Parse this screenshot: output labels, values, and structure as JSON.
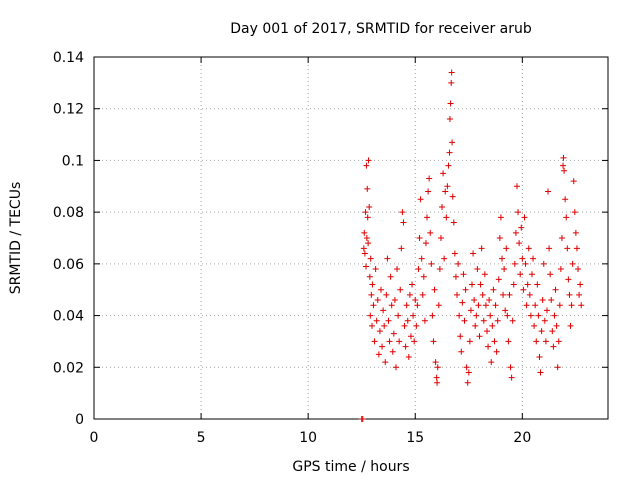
{
  "chart_data": {
    "type": "scatter",
    "title": "Day 001 of 2017, SRMTID for receiver arub",
    "xlabel": "GPS time / hours",
    "ylabel": "SRMTID / TECUs",
    "xlim": [
      0,
      24
    ],
    "ylim": [
      0,
      0.14
    ],
    "x_ticks": [
      0,
      5,
      10,
      15,
      20
    ],
    "x_tick_labels": [
      "0",
      "5",
      "10",
      "15",
      "20"
    ],
    "y_ticks": [
      0,
      0.02,
      0.04,
      0.06,
      0.08,
      0.1,
      0.12,
      0.14
    ],
    "y_tick_labels": [
      "0",
      "0.02",
      "0.04",
      "0.06",
      "0.08",
      "0.1",
      "0.12",
      "0.14"
    ],
    "grid": true,
    "marker": "+",
    "color": "#e00000",
    "series": [
      {
        "name": "SRMTID",
        "points": [
          [
            12.5,
            0.0
          ],
          [
            12.55,
            0.0
          ],
          [
            12.6,
            0.066
          ],
          [
            12.62,
            0.072
          ],
          [
            12.65,
            0.064
          ],
          [
            12.68,
            0.08
          ],
          [
            12.7,
            0.059
          ],
          [
            12.72,
            0.098
          ],
          [
            12.74,
            0.07
          ],
          [
            12.76,
            0.089
          ],
          [
            12.78,
            0.078
          ],
          [
            12.8,
            0.068
          ],
          [
            12.82,
            0.1
          ],
          [
            12.85,
            0.082
          ],
          [
            12.88,
            0.055
          ],
          [
            12.9,
            0.04
          ],
          [
            12.92,
            0.062
          ],
          [
            12.95,
            0.048
          ],
          [
            12.98,
            0.036
          ],
          [
            13.0,
            0.052
          ],
          [
            13.05,
            0.044
          ],
          [
            13.1,
            0.03
          ],
          [
            13.15,
            0.058
          ],
          [
            13.2,
            0.038
          ],
          [
            13.25,
            0.046
          ],
          [
            13.3,
            0.025
          ],
          [
            13.35,
            0.034
          ],
          [
            13.4,
            0.05
          ],
          [
            13.45,
            0.028
          ],
          [
            13.5,
            0.042
          ],
          [
            13.55,
            0.036
          ],
          [
            13.6,
            0.022
          ],
          [
            13.65,
            0.048
          ],
          [
            13.7,
            0.062
          ],
          [
            13.75,
            0.038
          ],
          [
            13.8,
            0.03
          ],
          [
            13.85,
            0.055
          ],
          [
            13.9,
            0.044
          ],
          [
            13.95,
            0.026
          ],
          [
            14.0,
            0.033
          ],
          [
            14.05,
            0.046
          ],
          [
            14.1,
            0.02
          ],
          [
            14.15,
            0.058
          ],
          [
            14.2,
            0.04
          ],
          [
            14.25,
            0.03
          ],
          [
            14.3,
            0.05
          ],
          [
            14.35,
            0.066
          ],
          [
            14.4,
            0.08
          ],
          [
            14.45,
            0.076
          ],
          [
            14.5,
            0.036
          ],
          [
            14.55,
            0.028
          ],
          [
            14.6,
            0.044
          ],
          [
            14.65,
            0.038
          ],
          [
            14.7,
            0.024
          ],
          [
            14.75,
            0.048
          ],
          [
            14.8,
            0.032
          ],
          [
            14.85,
            0.052
          ],
          [
            14.9,
            0.04
          ],
          [
            14.95,
            0.03
          ],
          [
            15.0,
            0.046
          ],
          [
            15.05,
            0.036
          ],
          [
            15.1,
            0.044
          ],
          [
            15.15,
            0.058
          ],
          [
            15.2,
            0.07
          ],
          [
            15.25,
            0.085
          ],
          [
            15.3,
            0.062
          ],
          [
            15.35,
            0.048
          ],
          [
            15.4,
            0.055
          ],
          [
            15.45,
            0.038
          ],
          [
            15.5,
            0.068
          ],
          [
            15.55,
            0.078
          ],
          [
            15.6,
            0.088
          ],
          [
            15.65,
            0.093
          ],
          [
            15.7,
            0.072
          ],
          [
            15.75,
            0.06
          ],
          [
            15.8,
            0.04
          ],
          [
            15.85,
            0.03
          ],
          [
            15.9,
            0.05
          ],
          [
            15.95,
            0.022
          ],
          [
            16.0,
            0.016
          ],
          [
            16.02,
            0.014
          ],
          [
            16.05,
            0.02
          ],
          [
            16.1,
            0.044
          ],
          [
            16.15,
            0.058
          ],
          [
            16.2,
            0.07
          ],
          [
            16.25,
            0.082
          ],
          [
            16.3,
            0.095
          ],
          [
            16.35,
            0.062
          ],
          [
            16.4,
            0.088
          ],
          [
            16.45,
            0.078
          ],
          [
            16.5,
            0.09
          ],
          [
            16.55,
            0.098
          ],
          [
            16.6,
            0.103
          ],
          [
            16.62,
            0.116
          ],
          [
            16.65,
            0.122
          ],
          [
            16.68,
            0.13
          ],
          [
            16.7,
            0.134
          ],
          [
            16.72,
            0.107
          ],
          [
            16.75,
            0.086
          ],
          [
            16.8,
            0.076
          ],
          [
            16.85,
            0.064
          ],
          [
            16.9,
            0.055
          ],
          [
            16.95,
            0.048
          ],
          [
            17.0,
            0.06
          ],
          [
            17.05,
            0.04
          ],
          [
            17.1,
            0.032
          ],
          [
            17.15,
            0.026
          ],
          [
            17.2,
            0.045
          ],
          [
            17.25,
            0.056
          ],
          [
            17.3,
            0.038
          ],
          [
            17.35,
            0.05
          ],
          [
            17.4,
            0.02
          ],
          [
            17.45,
            0.014
          ],
          [
            17.5,
            0.018
          ],
          [
            17.55,
            0.03
          ],
          [
            17.6,
            0.042
          ],
          [
            17.65,
            0.052
          ],
          [
            17.7,
            0.064
          ],
          [
            17.75,
            0.046
          ],
          [
            17.8,
            0.036
          ],
          [
            17.85,
            0.04
          ],
          [
            17.9,
            0.058
          ],
          [
            17.95,
            0.044
          ],
          [
            18.0,
            0.032
          ],
          [
            18.05,
            0.052
          ],
          [
            18.1,
            0.066
          ],
          [
            18.15,
            0.048
          ],
          [
            18.2,
            0.038
          ],
          [
            18.25,
            0.056
          ],
          [
            18.3,
            0.044
          ],
          [
            18.35,
            0.034
          ],
          [
            18.4,
            0.028
          ],
          [
            18.45,
            0.046
          ],
          [
            18.5,
            0.04
          ],
          [
            18.55,
            0.022
          ],
          [
            18.6,
            0.036
          ],
          [
            18.65,
            0.05
          ],
          [
            18.7,
            0.03
          ],
          [
            18.75,
            0.044
          ],
          [
            18.8,
            0.026
          ],
          [
            18.85,
            0.038
          ],
          [
            18.9,
            0.054
          ],
          [
            18.95,
            0.07
          ],
          [
            19.0,
            0.078
          ],
          [
            19.05,
            0.062
          ],
          [
            19.1,
            0.048
          ],
          [
            19.15,
            0.058
          ],
          [
            19.2,
            0.042
          ],
          [
            19.25,
            0.066
          ],
          [
            19.3,
            0.04
          ],
          [
            19.35,
            0.03
          ],
          [
            19.4,
            0.048
          ],
          [
            19.45,
            0.02
          ],
          [
            19.5,
            0.016
          ],
          [
            19.55,
            0.038
          ],
          [
            19.6,
            0.052
          ],
          [
            19.65,
            0.06
          ],
          [
            19.7,
            0.072
          ],
          [
            19.75,
            0.09
          ],
          [
            19.8,
            0.08
          ],
          [
            19.85,
            0.068
          ],
          [
            19.9,
            0.056
          ],
          [
            19.95,
            0.074
          ],
          [
            20.0,
            0.062
          ],
          [
            20.05,
            0.05
          ],
          [
            20.1,
            0.078
          ],
          [
            20.15,
            0.06
          ],
          [
            20.2,
            0.044
          ],
          [
            20.25,
            0.052
          ],
          [
            20.3,
            0.066
          ],
          [
            20.35,
            0.048
          ],
          [
            20.4,
            0.04
          ],
          [
            20.45,
            0.056
          ],
          [
            20.5,
            0.062
          ],
          [
            20.55,
            0.036
          ],
          [
            20.6,
            0.044
          ],
          [
            20.65,
            0.03
          ],
          [
            20.7,
            0.052
          ],
          [
            20.75,
            0.04
          ],
          [
            20.8,
            0.024
          ],
          [
            20.85,
            0.018
          ],
          [
            20.9,
            0.034
          ],
          [
            20.95,
            0.046
          ],
          [
            21.0,
            0.06
          ],
          [
            21.05,
            0.038
          ],
          [
            21.1,
            0.03
          ],
          [
            21.15,
            0.042
          ],
          [
            21.2,
            0.088
          ],
          [
            21.25,
            0.066
          ],
          [
            21.3,
            0.056
          ],
          [
            21.35,
            0.046
          ],
          [
            21.4,
            0.034
          ],
          [
            21.45,
            0.028
          ],
          [
            21.5,
            0.04
          ],
          [
            21.55,
            0.05
          ],
          [
            21.6,
            0.036
          ],
          [
            21.65,
            0.02
          ],
          [
            21.7,
            0.03
          ],
          [
            21.75,
            0.044
          ],
          [
            21.8,
            0.058
          ],
          [
            21.85,
            0.07
          ],
          [
            21.9,
            0.098
          ],
          [
            21.92,
            0.101
          ],
          [
            21.95,
            0.096
          ],
          [
            22.0,
            0.085
          ],
          [
            22.05,
            0.078
          ],
          [
            22.1,
            0.066
          ],
          [
            22.15,
            0.054
          ],
          [
            22.2,
            0.048
          ],
          [
            22.25,
            0.036
          ],
          [
            22.3,
            0.044
          ],
          [
            22.35,
            0.06
          ],
          [
            22.4,
            0.092
          ],
          [
            22.45,
            0.08
          ],
          [
            22.5,
            0.072
          ],
          [
            22.55,
            0.066
          ],
          [
            22.6,
            0.058
          ],
          [
            22.65,
            0.048
          ],
          [
            22.7,
            0.052
          ],
          [
            22.75,
            0.044
          ]
        ]
      }
    ]
  }
}
